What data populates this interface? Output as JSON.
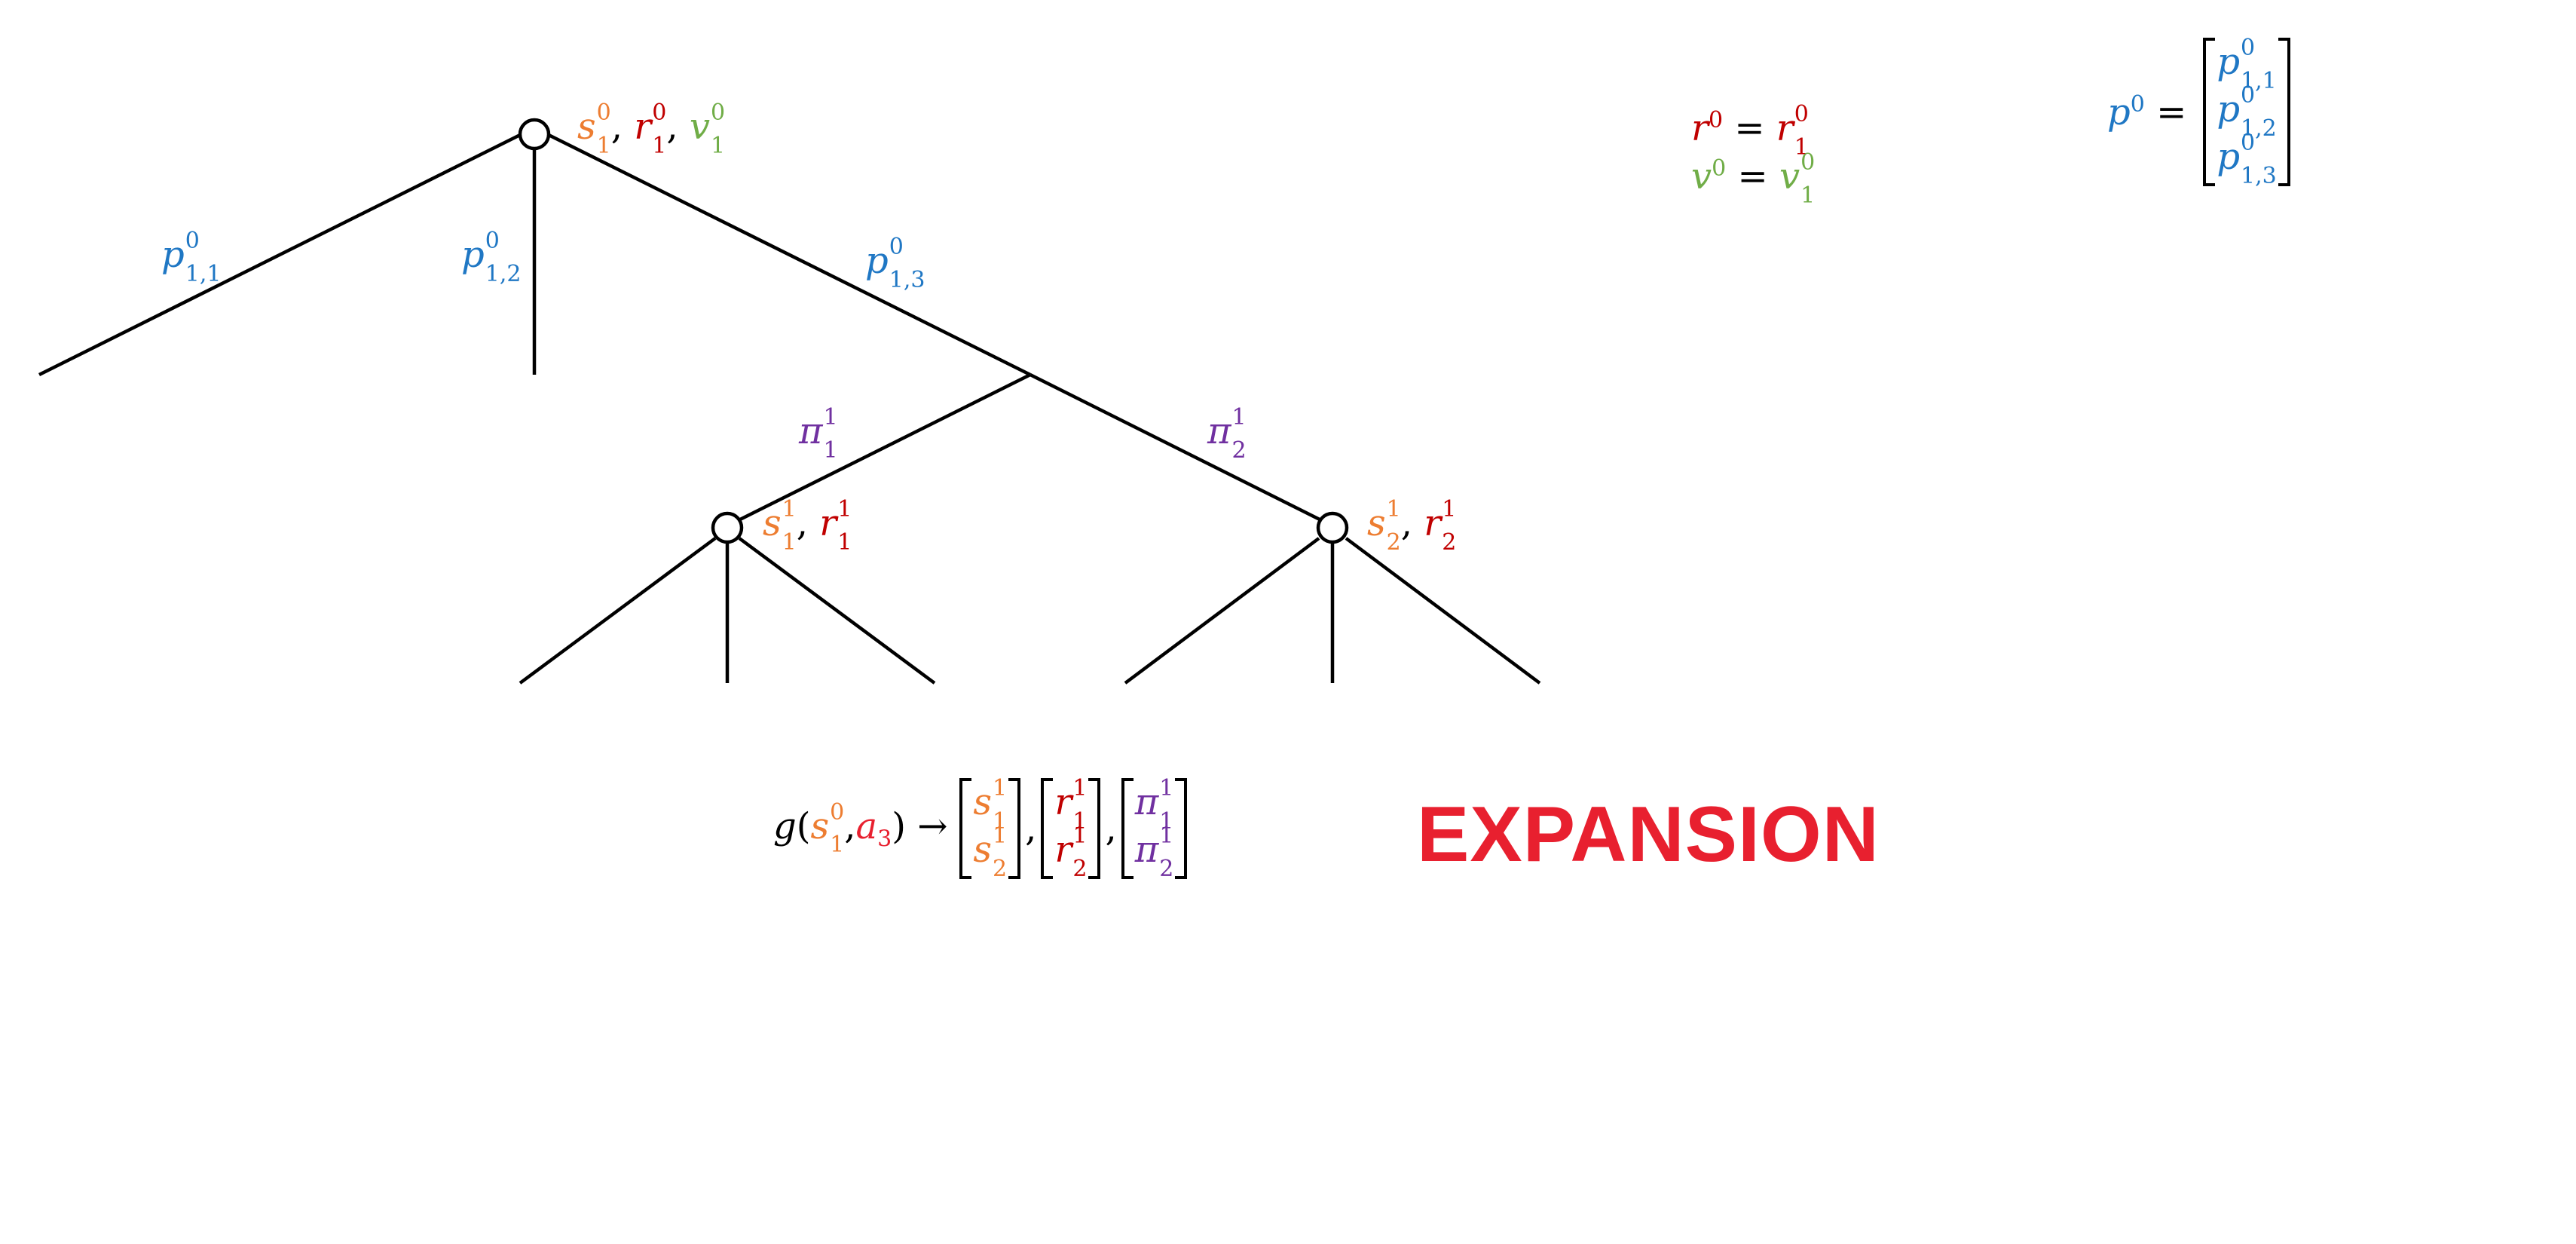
{
  "title": "EXPANSION",
  "colors": {
    "edge": "#000000",
    "policy_prior": "#1f77c4",
    "state": "#ed7d31",
    "reward": "#c00000",
    "value": "#70ad47",
    "child_policy": "#7030a0",
    "action": "#e8202f",
    "title": "#e8202f"
  },
  "tree": {
    "root": {
      "label_s": "s",
      "label_s_sub": "1",
      "label_s_sup": "0",
      "label_r": "r",
      "label_r_sub": "1",
      "label_r_sup": "0",
      "label_v": "v",
      "label_v_sub": "1",
      "label_v_sup": "0"
    },
    "edges": {
      "p11": {
        "base": "p",
        "sup": "0",
        "sub": "1,1"
      },
      "p12": {
        "base": "p",
        "sup": "0",
        "sub": "1,2"
      },
      "p13": {
        "base": "p",
        "sup": "0",
        "sub": "1,3"
      },
      "pi1": {
        "base": "π",
        "sup": "1",
        "sub": "1"
      },
      "pi2": {
        "base": "π",
        "sup": "1",
        "sub": "2"
      }
    },
    "child1": {
      "s": "s",
      "s_sub": "1",
      "s_sup": "1",
      "r": "r",
      "r_sub": "1",
      "r_sup": "1"
    },
    "child2": {
      "s": "s",
      "s_sub": "2",
      "s_sup": "1",
      "r": "r",
      "r_sub": "2",
      "r_sup": "1"
    }
  },
  "equations": {
    "r_eq": {
      "lhs": "r",
      "lhs_sup": "0",
      "eq": "=",
      "rhs": "r",
      "rhs_sub": "1",
      "rhs_sup": "0"
    },
    "v_eq": {
      "lhs": "v",
      "lhs_sup": "0",
      "eq": "=",
      "rhs": "v",
      "rhs_sub": "1",
      "rhs_sup": "0"
    },
    "p_eq": {
      "lhs": "p",
      "lhs_sup": "0",
      "eq": "=",
      "entries": [
        {
          "base": "p",
          "sup": "0",
          "sub": "1,1"
        },
        {
          "base": "p",
          "sup": "0",
          "sub": "1,2"
        },
        {
          "base": "p",
          "sup": "0",
          "sub": "1,3"
        }
      ]
    },
    "g_eq": {
      "fn": "g",
      "open": "(",
      "comma": ",",
      "close": ")",
      "arrow": "→",
      "arg_s": "s",
      "arg_s_sub": "1",
      "arg_s_sup": "0",
      "arg_a": "a",
      "arg_a_sub": "3",
      "m1": [
        {
          "base": "s",
          "sub": "1",
          "sup": "1"
        },
        {
          "base": "s",
          "sub": "2",
          "sup": "1"
        }
      ],
      "m2": [
        {
          "base": "r",
          "sub": "1",
          "sup": "1"
        },
        {
          "base": "r",
          "sub": "2",
          "sup": "1"
        }
      ],
      "m3": [
        {
          "base": "π",
          "sub": "1",
          "sup": "1"
        },
        {
          "base": "π",
          "sub": "2",
          "sup": "1"
        }
      ]
    }
  }
}
